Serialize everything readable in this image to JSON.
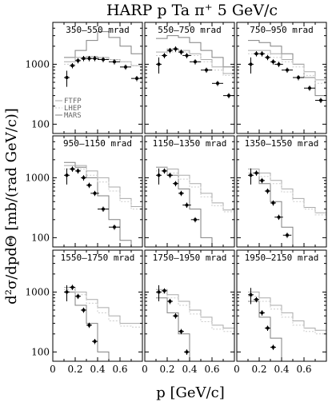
{
  "chart_data": {
    "type": "line",
    "title": "HARP p Ta π⁺ 5 GeV/c",
    "xlabel": "p [GeV/c]",
    "ylabel": "d²σ/dpdΘ [mb/(rad GeV/c)]",
    "xlim": [
      0,
      0.8
    ],
    "ylim": [
      70,
      5000
    ],
    "yscale": "log",
    "xticks": [
      "0",
      "0.2",
      "0.4",
      "0.6"
    ],
    "yticks": [
      "100",
      "1000"
    ],
    "legend": {
      "placement": "bottom-left of first panel",
      "entries": [
        "FTFP",
        "LHEP",
        "MARS"
      ]
    },
    "colors": {
      "data": "#000000",
      "ftfp": "#aaaaaa",
      "lhep": "#cccccc",
      "mars": "#808080"
    },
    "panels": [
      {
        "label": "350–550 mrad",
        "data": {
          "x": [
            0.125,
            0.175,
            0.225,
            0.275,
            0.325,
            0.375,
            0.45,
            0.55,
            0.65,
            0.75
          ],
          "y": [
            600,
            950,
            1150,
            1250,
            1250,
            1250,
            1200,
            1100,
            900,
            580
          ]
        },
        "ftfp": {
          "x": [
            0.1,
            0.2,
            0.3,
            0.4,
            0.5,
            0.6,
            0.7,
            0.8
          ],
          "y": [
            1100,
            1300,
            1350,
            1300,
            1200,
            1100,
            950,
            850
          ]
        },
        "lhep": {
          "x": [
            0.1,
            0.2,
            0.3,
            0.4,
            0.5,
            0.6,
            0.7,
            0.8
          ],
          "y": [
            1000,
            1200,
            1250,
            1250,
            1200,
            1100,
            950,
            850
          ]
        },
        "mars": {
          "x": [
            0.1,
            0.2,
            0.3,
            0.4,
            0.5,
            0.6,
            0.7,
            0.8
          ],
          "y": [
            1300,
            1700,
            2500,
            3500,
            2800,
            2000,
            1500,
            1300
          ]
        }
      },
      {
        "label": "550–750 mrad",
        "data": {
          "x": [
            0.125,
            0.175,
            0.225,
            0.275,
            0.325,
            0.375,
            0.45,
            0.55,
            0.65,
            0.75
          ],
          "y": [
            1000,
            1400,
            1700,
            1800,
            1600,
            1400,
            1100,
            800,
            480,
            300
          ]
        },
        "ftfp": {
          "x": [
            0.1,
            0.2,
            0.3,
            0.4,
            0.5,
            0.6,
            0.7,
            0.8
          ],
          "y": [
            1600,
            1800,
            1700,
            1500,
            1200,
            900,
            700,
            600
          ]
        },
        "lhep": {
          "x": [
            0.1,
            0.2,
            0.3,
            0.4,
            0.5,
            0.6,
            0.7,
            0.8
          ],
          "y": [
            1400,
            1600,
            1600,
            1400,
            1100,
            800,
            650,
            550
          ]
        },
        "mars": {
          "x": [
            0.1,
            0.2,
            0.3,
            0.4,
            0.5,
            0.6,
            0.7,
            0.8
          ],
          "y": [
            2700,
            3000,
            2800,
            2300,
            1700,
            1300,
            900,
            700
          ]
        }
      },
      {
        "label": "750–950 mrad",
        "data": {
          "x": [
            0.125,
            0.175,
            0.225,
            0.275,
            0.325,
            0.375,
            0.45,
            0.55,
            0.65,
            0.75
          ],
          "y": [
            1000,
            1500,
            1500,
            1300,
            1100,
            1000,
            800,
            600,
            400,
            250
          ]
        },
        "ftfp": {
          "x": [
            0.1,
            0.2,
            0.3,
            0.4,
            0.5,
            0.6,
            0.7,
            0.8
          ],
          "y": [
            1700,
            1700,
            1500,
            1200,
            1000,
            750,
            550,
            420
          ]
        },
        "lhep": {
          "x": [
            0.1,
            0.2,
            0.3,
            0.4,
            0.5,
            0.6,
            0.7,
            0.8
          ],
          "y": [
            1500,
            1500,
            1300,
            1100,
            900,
            650,
            480,
            380
          ]
        },
        "mars": {
          "x": [
            0.1,
            0.2,
            0.3,
            0.4,
            0.5,
            0.6,
            0.7,
            0.8
          ],
          "y": [
            2500,
            2300,
            2000,
            1500,
            1000,
            600,
            300,
            130
          ]
        }
      },
      {
        "label": "950–1150 mrad",
        "data": {
          "x": [
            0.125,
            0.175,
            0.225,
            0.275,
            0.325,
            0.375,
            0.45,
            0.55
          ],
          "y": [
            1100,
            1400,
            1300,
            1000,
            750,
            550,
            300,
            150
          ]
        },
        "ftfp": {
          "x": [
            0.1,
            0.2,
            0.3,
            0.4,
            0.5,
            0.6,
            0.7,
            0.8
          ],
          "y": [
            1600,
            1600,
            1300,
            1000,
            700,
            450,
            330,
            280
          ]
        },
        "lhep": {
          "x": [
            0.1,
            0.2,
            0.3,
            0.4,
            0.5,
            0.6,
            0.7,
            0.8
          ],
          "y": [
            1400,
            1400,
            1100,
            850,
            600,
            400,
            300,
            260
          ]
        },
        "mars": {
          "x": [
            0.1,
            0.2,
            0.3,
            0.4,
            0.5,
            0.6,
            0.7
          ],
          "y": [
            1800,
            1500,
            1000,
            500,
            200,
            90,
            50
          ]
        }
      },
      {
        "label": "1150–1350 mrad",
        "data": {
          "x": [
            0.125,
            0.175,
            0.225,
            0.275,
            0.325,
            0.375,
            0.45
          ],
          "y": [
            1100,
            1300,
            1100,
            800,
            550,
            350,
            200
          ]
        },
        "ftfp": {
          "x": [
            0.1,
            0.2,
            0.3,
            0.4,
            0.5,
            0.6,
            0.7,
            0.8
          ],
          "y": [
            1500,
            1400,
            1100,
            800,
            550,
            380,
            290,
            250
          ]
        },
        "lhep": {
          "x": [
            0.1,
            0.2,
            0.3,
            0.4,
            0.5,
            0.6,
            0.7,
            0.8
          ],
          "y": [
            1300,
            1200,
            950,
            700,
            480,
            340,
            270,
            240
          ]
        },
        "mars": {
          "x": [
            0.1,
            0.2,
            0.3,
            0.4,
            0.5,
            0.6
          ],
          "y": [
            1500,
            1100,
            650,
            300,
            100,
            50
          ]
        }
      },
      {
        "label": "1350–1550 mrad",
        "data": {
          "x": [
            0.125,
            0.175,
            0.225,
            0.275,
            0.325,
            0.375,
            0.45
          ],
          "y": [
            1100,
            1200,
            900,
            600,
            380,
            220,
            110
          ]
        },
        "ftfp": {
          "x": [
            0.1,
            0.2,
            0.3,
            0.4,
            0.5,
            0.6,
            0.7,
            0.8
          ],
          "y": [
            1400,
            1200,
            900,
            650,
            450,
            320,
            260,
            230
          ]
        },
        "lhep": {
          "x": [
            0.1,
            0.2,
            0.3,
            0.4,
            0.5,
            0.6,
            0.7,
            0.8
          ],
          "y": [
            1200,
            1050,
            800,
            580,
            400,
            300,
            240,
            220
          ]
        },
        "mars": {
          "x": [
            0.1,
            0.2,
            0.3,
            0.4,
            0.5,
            0.6
          ],
          "y": [
            1200,
            800,
            400,
            150,
            60,
            30
          ]
        }
      },
      {
        "label": "1550–1750 mrad",
        "data": {
          "x": [
            0.125,
            0.175,
            0.225,
            0.275,
            0.325,
            0.375
          ],
          "y": [
            1000,
            1200,
            850,
            500,
            280,
            150
          ]
        },
        "ftfp": {
          "x": [
            0.1,
            0.2,
            0.3,
            0.4,
            0.5,
            0.6,
            0.7
          ],
          "y": [
            1200,
            1000,
            750,
            550,
            400,
            300,
            300
          ]
        },
        "lhep": {
          "x": [
            0.1,
            0.2,
            0.3,
            0.4,
            0.5,
            0.6,
            0.7
          ],
          "y": [
            1100,
            900,
            650,
            450,
            330,
            270,
            260
          ]
        },
        "mars": {
          "x": [
            0.1,
            0.2,
            0.3,
            0.4,
            0.5
          ],
          "y": [
            1000,
            600,
            300,
            100,
            40
          ]
        }
      },
      {
        "label": "1750–1950 mrad",
        "data": {
          "x": [
            0.125,
            0.175,
            0.225,
            0.275,
            0.325,
            0.375
          ],
          "y": [
            1000,
            1050,
            700,
            400,
            220,
            100
          ]
        },
        "ftfp": {
          "x": [
            0.1,
            0.2,
            0.3,
            0.4,
            0.5,
            0.6,
            0.7
          ],
          "y": [
            1100,
            900,
            700,
            500,
            380,
            280,
            250
          ]
        },
        "lhep": {
          "x": [
            0.1,
            0.2,
            0.3,
            0.4,
            0.5,
            0.6,
            0.7
          ],
          "y": [
            950,
            800,
            600,
            430,
            320,
            240,
            220
          ]
        },
        "mars": {
          "x": [
            0.1,
            0.2,
            0.3,
            0.4,
            0.5
          ],
          "y": [
            800,
            450,
            200,
            70,
            30
          ]
        }
      },
      {
        "label": "1950–2150 mrad",
        "data": {
          "x": [
            0.125,
            0.175,
            0.225,
            0.275,
            0.325
          ],
          "y": [
            900,
            750,
            450,
            250,
            120
          ]
        },
        "ftfp": {
          "x": [
            0.1,
            0.2,
            0.3,
            0.4,
            0.5,
            0.6,
            0.7
          ],
          "y": [
            1000,
            800,
            600,
            450,
            330,
            250,
            230
          ]
        },
        "lhep": {
          "x": [
            0.1,
            0.2,
            0.3,
            0.4,
            0.5,
            0.6,
            0.7
          ],
          "y": [
            850,
            700,
            520,
            380,
            280,
            220,
            200
          ]
        },
        "mars": {
          "x": [
            0.1,
            0.2,
            0.3,
            0.4,
            0.5
          ],
          "y": [
            700,
            380,
            170,
            60,
            25
          ]
        }
      }
    ]
  }
}
